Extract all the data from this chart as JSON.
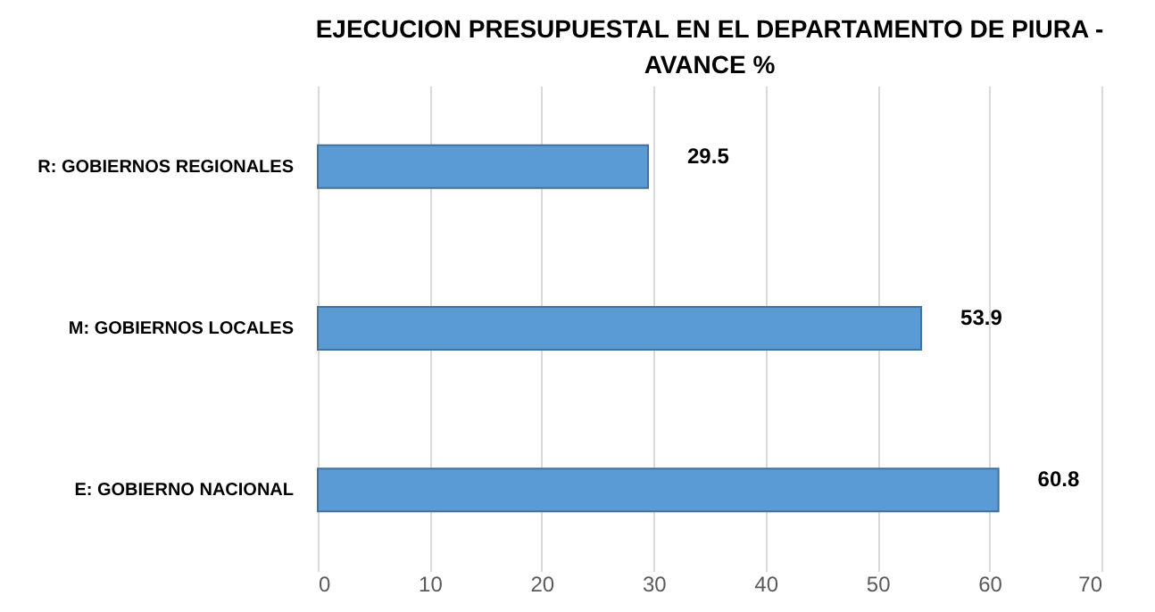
{
  "chart_data": {
    "type": "bar",
    "orientation": "horizontal",
    "title": "EJECUCION PRESUPUESTAL EN EL DEPARTAMENTO DE PIURA - AVANCE %",
    "categories": [
      "R: GOBIERNOS REGIONALES",
      "M: GOBIERNOS LOCALES",
      "E: GOBIERNO NACIONAL"
    ],
    "values": [
      29.5,
      53.9,
      60.8
    ],
    "color": "#5b9bd5",
    "xlim": [
      0,
      70
    ],
    "xticks": [
      0,
      10,
      20,
      30,
      40,
      50,
      60,
      70
    ],
    "grid": "x",
    "data_labels": true
  }
}
